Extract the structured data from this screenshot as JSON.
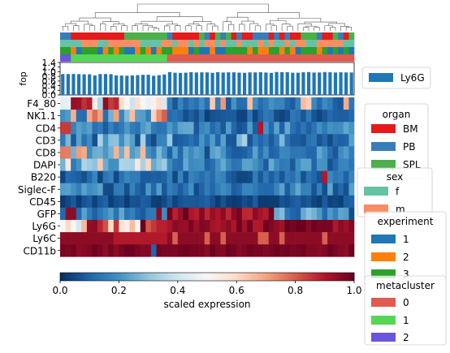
{
  "chart_data": {
    "type": "heatmap",
    "rows": [
      "F4_80",
      "NK1.1",
      "CD4",
      "CD3",
      "CD8",
      "DAPI",
      "B220",
      "Siglec-F",
      "CD45",
      "GFP",
      "Ly6G",
      "Ly6C",
      "CD11b"
    ],
    "n_cols": 55,
    "colorbar": {
      "label": "scaled expression",
      "ticks": [
        "0.0",
        "0.2",
        "0.4",
        "0.6",
        "0.8",
        "1.0"
      ],
      "range": [
        0,
        1
      ]
    },
    "bar_panel": {
      "ylabel": "fop",
      "ticks": [
        "0.0",
        "0.2",
        "0.4",
        "0.6",
        "0.8",
        "1.0",
        "1.2",
        "1.4"
      ],
      "ylim": [
        0,
        1.4
      ],
      "series_name": "Ly6G"
    },
    "legends": [
      {
        "title": "",
        "entries": [
          {
            "label": "Ly6G",
            "color": "#1f77b4"
          }
        ]
      },
      {
        "title": "organ",
        "entries": [
          {
            "label": "BM",
            "color": "#e41a1c"
          },
          {
            "label": "PB",
            "color": "#377eb8"
          },
          {
            "label": "SPL",
            "color": "#4daf4a"
          }
        ]
      },
      {
        "title": "sex",
        "entries": [
          {
            "label": "f",
            "color": "#66c2a5"
          },
          {
            "label": "m",
            "color": "#fc8d62"
          }
        ]
      },
      {
        "title": "experiment",
        "entries": [
          {
            "label": "1",
            "color": "#1f77b4"
          },
          {
            "label": "2",
            "color": "#ff7f0e"
          },
          {
            "label": "3",
            "color": "#2ca02c"
          }
        ]
      },
      {
        "title": "metacluster",
        "entries": [
          {
            "label": "0",
            "color": "#e05a4f"
          },
          {
            "label": "1",
            "color": "#55d655"
          },
          {
            "label": "2",
            "color": "#6a55db"
          }
        ]
      }
    ]
  }
}
